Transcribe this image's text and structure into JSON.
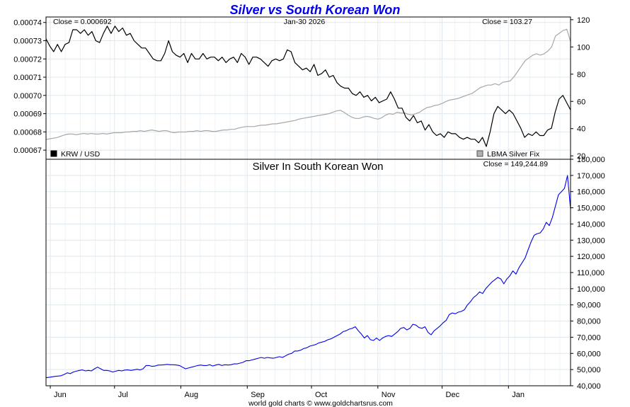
{
  "title": "Silver vs South Korean Won",
  "footer": "world gold charts © www.goldchartsrus.com",
  "colors": {
    "title": "#0000ee",
    "krw_line": "#000000",
    "silver_usd_line": "#a8a8a8",
    "silver_krw_line": "#0000ee",
    "grid": "#dfe8ee"
  },
  "top_panel": {
    "close_left": "Close = 0.000692",
    "date": "Jan-30  2026",
    "close_right": "Close = 103.27",
    "legend_left": "KRW / USD",
    "legend_right": "LBMA Silver Fix"
  },
  "bottom_panel": {
    "title": "Silver In South Korean Won",
    "close": "Close = 149,244.89"
  },
  "chart_data": [
    {
      "type": "line",
      "title": "KRW / USD vs LBMA Silver Fix",
      "x_ticks": [
        "Jun",
        "Jul",
        "Aug",
        "Sep",
        "Oct",
        "Nov",
        "Dec",
        "Jan"
      ],
      "x_range": [
        "2025-05-30",
        "2026-01-30"
      ],
      "y_left": {
        "label": "KRW / USD",
        "ylim": [
          0.000665,
          0.000743
        ],
        "ticks": [
          "0.00067",
          "0.00068",
          "0.00069",
          "0.00070",
          "0.00071",
          "0.00072",
          "0.00073",
          "0.00074"
        ]
      },
      "y_right": {
        "label": "LBMA Silver Fix",
        "ylim": [
          17.5,
          122
        ],
        "ticks": [
          "20",
          "40",
          "60",
          "80",
          "100",
          "120"
        ]
      },
      "series": [
        {
          "name": "KRW / USD",
          "axis": "left",
          "values": [
            0.000731,
            0.000727,
            0.000724,
            0.000728,
            0.000724,
            0.000728,
            0.000729,
            0.000736,
            0.000736,
            0.000734,
            0.000736,
            0.000733,
            0.000735,
            0.00073,
            0.000729,
            0.000734,
            0.000738,
            0.000734,
            0.000738,
            0.000735,
            0.000737,
            0.000733,
            0.000734,
            0.00073,
            0.000728,
            0.000726,
            0.000726,
            0.000723,
            0.00072,
            0.000719,
            0.000719,
            0.000723,
            0.00073,
            0.000724,
            0.000722,
            0.000721,
            0.000723,
            0.000718,
            0.000723,
            0.00072,
            0.00072,
            0.000723,
            0.00072,
            0.000721,
            0.000721,
            0.000719,
            0.000721,
            0.000718,
            0.00072,
            0.000721,
            0.000718,
            0.000723,
            0.000721,
            0.000717,
            0.000721,
            0.000721,
            0.00072,
            0.000718,
            0.000716,
            0.000719,
            0.00072,
            0.000719,
            0.00072,
            0.000725,
            0.000724,
            0.000718,
            0.000716,
            0.000714,
            0.000715,
            0.000713,
            0.000717,
            0.000711,
            0.000712,
            0.000714,
            0.00071,
            0.000711,
            0.000707,
            0.000705,
            0.000704,
            0.000704,
            0.000701,
            0.0007,
            0.000702,
            0.000699,
            0.0007,
            0.000697,
            0.000699,
            0.000696,
            0.000697,
            0.000698,
            0.000702,
            0.000698,
            0.000693,
            0.000693,
            0.000688,
            0.000686,
            0.000689,
            0.000685,
            0.000686,
            0.000681,
            0.000684,
            0.00068,
            0.000678,
            0.000679,
            0.000677,
            0.00068,
            0.000679,
            0.000679,
            0.000677,
            0.000676,
            0.000677,
            0.000676,
            0.000676,
            0.000674,
            0.000677,
            0.000672,
            0.00068,
            0.00069,
            0.000694,
            0.000692,
            0.00069,
            0.000692,
            0.00069,
            0.000686,
            0.000682,
            0.000677,
            0.000679,
            0.000678,
            0.00068,
            0.000678,
            0.000678,
            0.000681,
            0.000682,
            0.000691,
            0.000698,
            0.0007,
            0.000696,
            0.000692
          ]
        },
        {
          "name": "LBMA Silver Fix",
          "axis": "right",
          "values": [
            32,
            32.5,
            33,
            33.5,
            34.5,
            35.5,
            36,
            36,
            35.5,
            36,
            36.5,
            36,
            36.5,
            36,
            36,
            36.5,
            36,
            36.5,
            37,
            37,
            37,
            37.5,
            37.5,
            38,
            38,
            38.5,
            38,
            38.5,
            39,
            38.5,
            38,
            38.5,
            38.5,
            37.5,
            37,
            37.5,
            37.5,
            37.5,
            38,
            38,
            38.5,
            38,
            38.5,
            38.5,
            38,
            38,
            38.5,
            39,
            39,
            39.5,
            39.5,
            40.5,
            41,
            41.5,
            41.5,
            41.5,
            42,
            42.5,
            42.5,
            43,
            43.5,
            43.5,
            44,
            44.5,
            45,
            45.5,
            46,
            47,
            47.5,
            48,
            48.5,
            49,
            49.5,
            50,
            50.5,
            51,
            52,
            53,
            53.5,
            52,
            50,
            48.5,
            47.5,
            47.5,
            48.5,
            49,
            48.5,
            47.5,
            47,
            48,
            50,
            51,
            50.5,
            52,
            51.5,
            51.5,
            50.5,
            50,
            51,
            52,
            54,
            55.5,
            56,
            57,
            57.5,
            58.5,
            60,
            61,
            61.5,
            62,
            63,
            64,
            65,
            66,
            68,
            70,
            71,
            72,
            72,
            73,
            72,
            74,
            74.5,
            75,
            78,
            82,
            86,
            90,
            92,
            94,
            95,
            94,
            95,
            97,
            100,
            108,
            110,
            112,
            113,
            104
          ]
        }
      ]
    },
    {
      "type": "line",
      "title": "Silver In South Korean Won",
      "x_ticks": [
        "Jun",
        "Jul",
        "Aug",
        "Sep",
        "Oct",
        "Nov",
        "Dec",
        "Jan"
      ],
      "x_range": [
        "2025-05-30",
        "2026-01-30"
      ],
      "ylim": [
        40000,
        180000
      ],
      "y_ticks": [
        "40,000",
        "50,000",
        "60,000",
        "70,000",
        "80,000",
        "90,000",
        "100,000",
        "110,000",
        "120,000",
        "130,000",
        "140,000",
        "150,000",
        "160,000",
        "170,000",
        "180,000"
      ],
      "series": [
        {
          "name": "Silver In South Korean Won",
          "values": [
            45000,
            45200,
            45500,
            45800,
            46000,
            46200,
            47000,
            48000,
            47500,
            48500,
            49000,
            49500,
            49800,
            49200,
            49500,
            49200,
            50500,
            51500,
            50500,
            49500,
            49500,
            49200,
            48500,
            49000,
            49500,
            49200,
            49700,
            49800,
            49500,
            49800,
            50200,
            49800,
            50500,
            52500,
            52500,
            52000,
            52200,
            52800,
            52800,
            53000,
            53200,
            53000,
            53000,
            52800,
            52500,
            51500,
            50500,
            51000,
            51500,
            52000,
            52500,
            52800,
            52500,
            52500,
            53000,
            52200,
            52800,
            53200,
            52500,
            53000,
            52800,
            53000,
            53500,
            53500,
            54000,
            54500,
            55500,
            55500,
            56000,
            56500,
            57000,
            57500,
            57000,
            57500,
            57200,
            57000,
            57500,
            58000,
            57500,
            58500,
            59500,
            60000,
            61500,
            61500,
            62000,
            63000,
            63500,
            64500,
            65000,
            65500,
            66500,
            67000,
            67500,
            68500,
            69000,
            70000,
            71000,
            72000,
            73500,
            74000,
            75000,
            75500,
            76500,
            74000,
            72000,
            69500,
            71000,
            68500,
            68000,
            69500,
            68000,
            69500,
            70500,
            71000,
            70500,
            72000,
            73500,
            75500,
            76000,
            74500,
            75500,
            78000,
            77500,
            76000,
            75500,
            76500,
            73000,
            71500,
            74000,
            75500,
            77000,
            79000,
            80500,
            84000,
            85000,
            84500,
            85500,
            86000,
            87000,
            90000,
            92000,
            94500,
            96000,
            98000,
            97000,
            100000,
            102000,
            104000,
            105500,
            107000,
            106000,
            103000,
            106000,
            108000,
            111000,
            109000,
            113000,
            116000,
            119000,
            124000,
            129000,
            133000,
            134000,
            134500,
            137000,
            141000,
            139000,
            144000,
            151000,
            158000,
            160000,
            162000,
            170000,
            149245
          ]
        }
      ]
    }
  ]
}
